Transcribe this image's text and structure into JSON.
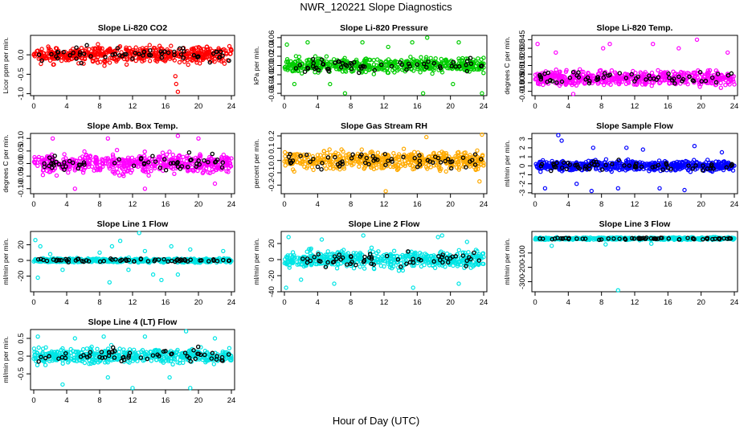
{
  "page": {
    "title": "NWR_120221  Slope Diagnostics",
    "xlabel": "Hour of Day (UTC)"
  },
  "chart_data": [
    {
      "type": "scatter",
      "title": "Slope Li-820 CO2",
      "ylabel": "Licor ppm per min.",
      "color": "#ff0000",
      "xlim": [
        0,
        24
      ],
      "ylim": [
        -1.05,
        0.5
      ],
      "xticks": [
        0,
        4,
        8,
        12,
        16,
        20,
        24
      ],
      "yticks": [
        -1.0,
        -0.5,
        0.0
      ],
      "ytick_labels": [
        "-1.0",
        "-0.5",
        "0.0"
      ],
      "spread": 0.2,
      "outliers": [
        [
          17.2,
          -0.55
        ],
        [
          17.3,
          -0.75
        ],
        [
          17.5,
          -0.95
        ]
      ]
    },
    {
      "type": "scatter",
      "title": "Slope Li-820 Pressure",
      "ylabel": "kPa per min.",
      "color": "#00cc00",
      "xlim": [
        0,
        24
      ],
      "ylim": [
        -0.065,
        0.065
      ],
      "xticks": [
        0,
        4,
        8,
        12,
        16,
        20,
        24
      ],
      "yticks": [
        -0.06,
        -0.04,
        -0.02,
        0.0,
        0.02,
        0.04,
        0.06
      ],
      "ytick_labels": [
        "-0.06",
        "-0.04",
        "-0.02",
        "0.00",
        "0.02",
        "0.04",
        "0.06"
      ],
      "spread": 0.015,
      "outliers": [
        [
          0.3,
          0.045
        ],
        [
          1.2,
          -0.04
        ],
        [
          2.8,
          0.05
        ],
        [
          5.5,
          -0.04
        ],
        [
          7.3,
          -0.06
        ],
        [
          9.4,
          0.05
        ],
        [
          12.5,
          0.04
        ],
        [
          15.4,
          0.05
        ],
        [
          16.7,
          -0.06
        ],
        [
          17.2,
          0.06
        ],
        [
          20.3,
          -0.04
        ],
        [
          21.0,
          0.05
        ],
        [
          23.8,
          -0.06
        ]
      ]
    },
    {
      "type": "scatter",
      "title": "Slope Li-820 Temp.",
      "ylabel": "degrees C per min.",
      "color": "#ff00ff",
      "xlim": [
        0,
        24
      ],
      "ylim": [
        -0.02,
        0.05
      ],
      "xticks": [
        0,
        4,
        8,
        12,
        16,
        20,
        24
      ],
      "yticks": [
        -0.015,
        -0.005,
        0.005,
        0.015,
        0.025,
        0.035,
        0.045
      ],
      "ytick_labels": [
        "-0.015",
        "-0.005",
        "0.005",
        "0.015",
        "0.025",
        "0.035",
        "0.045"
      ],
      "spread": 0.008,
      "outliers": [
        [
          0.3,
          0.04
        ],
        [
          2.5,
          0.03
        ],
        [
          4.6,
          -0.018
        ],
        [
          8.2,
          0.035
        ],
        [
          9.0,
          0.04
        ],
        [
          14.2,
          0.04
        ],
        [
          17.3,
          0.035
        ],
        [
          19.5,
          0.045
        ],
        [
          23.2,
          0.03
        ]
      ]
    },
    {
      "type": "scatter",
      "title": "Slope Amb. Box Temp.",
      "ylabel": "degrees C per min.",
      "color": "#ff00ff",
      "xlim": [
        0,
        24
      ],
      "ylim": [
        -0.12,
        0.12
      ],
      "xticks": [
        0,
        4,
        8,
        12,
        16,
        20,
        24
      ],
      "yticks": [
        -0.1,
        -0.05,
        0.0,
        0.05,
        0.1
      ],
      "ytick_labels": [
        "-0.10",
        "-0.05",
        "0.00",
        "0.05",
        "0.10"
      ],
      "spread": 0.035,
      "outliers": [
        [
          2.3,
          0.1
        ],
        [
          5.0,
          -0.1
        ],
        [
          9.0,
          0.1
        ],
        [
          13.5,
          -0.1
        ],
        [
          17.5,
          0.11
        ],
        [
          20.0,
          0.1
        ],
        [
          22.0,
          -0.08
        ]
      ]
    },
    {
      "type": "scatter",
      "title": "Slope Gas Stream RH",
      "ylabel": "percent per min.",
      "color": "#ffaa00",
      "xlim": [
        0,
        24
      ],
      "ylim": [
        -0.27,
        0.22
      ],
      "xticks": [
        0,
        4,
        8,
        12,
        16,
        20,
        24
      ],
      "yticks": [
        -0.2,
        -0.1,
        0.0,
        0.1,
        0.2
      ],
      "ytick_labels": [
        "-0.2",
        "-0.1",
        "0.0",
        "0.1",
        "0.2"
      ],
      "spread": 0.07,
      "outliers": [
        [
          12.2,
          -0.25
        ],
        [
          17.1,
          0.19
        ],
        [
          23.8,
          0.21
        ],
        [
          23.5,
          -0.17
        ]
      ]
    },
    {
      "type": "scatter",
      "title": "Slope Sample Flow",
      "ylabel": "ml/min per min.",
      "color": "#0000ff",
      "xlim": [
        0,
        24
      ],
      "ylim": [
        -3.1,
        3.6
      ],
      "xticks": [
        0,
        4,
        8,
        12,
        16,
        20,
        24
      ],
      "yticks": [
        -3,
        -2,
        -1,
        0,
        1,
        2,
        3
      ],
      "ytick_labels": [
        "-3",
        "-2",
        "-1",
        "0",
        "1",
        "2",
        "3"
      ],
      "spread": 0.55,
      "outliers": [
        [
          1.2,
          -2.5
        ],
        [
          2.8,
          3.4
        ],
        [
          3.2,
          2.8
        ],
        [
          5.0,
          -2.0
        ],
        [
          6.8,
          -2.8
        ],
        [
          7.0,
          2.0
        ],
        [
          10.0,
          -2.5
        ],
        [
          11.0,
          2.0
        ],
        [
          13.0,
          1.8
        ],
        [
          15.0,
          -2.5
        ],
        [
          18.0,
          -2.7
        ],
        [
          19.2,
          2.2
        ],
        [
          22.5,
          1.5
        ]
      ]
    },
    {
      "type": "scatter",
      "title": "Slope Line 1 Flow",
      "ylabel": "ml/min per min.",
      "color": "#00e5e5",
      "xlim": [
        0,
        24
      ],
      "ylim": [
        -40,
        37
      ],
      "xticks": [
        0,
        4,
        8,
        12,
        16,
        20,
        24
      ],
      "yticks": [
        -20,
        0,
        20
      ],
      "ytick_labels": [
        "-20",
        "0",
        "20"
      ],
      "spread": 2.5,
      "outliers": [
        [
          0.2,
          26
        ],
        [
          0.5,
          -22
        ],
        [
          0.8,
          18
        ],
        [
          2.0,
          8
        ],
        [
          3.5,
          -12
        ],
        [
          8.0,
          10
        ],
        [
          9.2,
          -28
        ],
        [
          9.5,
          18
        ],
        [
          10.5,
          25
        ],
        [
          11.5,
          -12
        ],
        [
          12.8,
          35
        ],
        [
          13.5,
          12
        ],
        [
          14.5,
          -18
        ],
        [
          15.5,
          -25
        ],
        [
          16.7,
          18
        ],
        [
          17.5,
          -18
        ],
        [
          19.0,
          14
        ],
        [
          23.0,
          12
        ]
      ]
    },
    {
      "type": "scatter",
      "title": "Slope Line 2 Flow",
      "ylabel": "ml/min per min.",
      "color": "#00e5e5",
      "xlim": [
        0,
        24
      ],
      "ylim": [
        -40,
        35
      ],
      "xticks": [
        0,
        4,
        8,
        12,
        16,
        20,
        24
      ],
      "yticks": [
        -40,
        -20,
        0,
        20
      ],
      "ytick_labels": [
        "-40",
        "-20",
        "0",
        "20"
      ],
      "spread": 10,
      "outliers": [
        [
          0.2,
          -35
        ],
        [
          0.5,
          28
        ],
        [
          2.0,
          -25
        ],
        [
          4.5,
          25
        ],
        [
          6.0,
          -30
        ],
        [
          9.5,
          30
        ],
        [
          15.5,
          -35
        ],
        [
          18.5,
          28
        ],
        [
          19.0,
          30
        ],
        [
          21.0,
          -30
        ],
        [
          22.0,
          22
        ]
      ]
    },
    {
      "type": "scatter",
      "title": "Slope Line 3 Flow",
      "ylabel": "ml/min per min.",
      "color": "#00e5e5",
      "xlim": [
        0,
        24
      ],
      "ylim": [
        -370,
        50
      ],
      "xticks": [
        0,
        4,
        8,
        12,
        16,
        20,
        24
      ],
      "yticks": [
        -300,
        -200,
        -100
      ],
      "ytick_labels": [
        "-300",
        "-200",
        "-100"
      ],
      "spread": 8,
      "outliers": [
        [
          10.0,
          -360
        ],
        [
          8.5,
          -40
        ],
        [
          2.0,
          -50
        ],
        [
          14.0,
          -35
        ]
      ]
    },
    {
      "type": "scatter",
      "title": "Slope Line 4 (LT) Flow",
      "ylabel": "ml/min per min.",
      "color": "#00e5e5",
      "xlim": [
        0,
        24
      ],
      "ylim": [
        -0.95,
        0.75
      ],
      "xticks": [
        0,
        4,
        8,
        12,
        16,
        20,
        24
      ],
      "yticks": [
        -0.5,
        0.0,
        0.5
      ],
      "ytick_labels": [
        "-0.5",
        "0.0",
        "0.5"
      ],
      "spread": 0.2,
      "outliers": [
        [
          0.5,
          0.55
        ],
        [
          3.5,
          -0.8
        ],
        [
          5.0,
          0.5
        ],
        [
          8.5,
          0.55
        ],
        [
          9.0,
          -0.6
        ],
        [
          12.0,
          -0.9
        ],
        [
          13.5,
          0.55
        ],
        [
          16.5,
          -0.6
        ],
        [
          18.5,
          0.7
        ],
        [
          19.0,
          -0.9
        ],
        [
          22.0,
          0.5
        ]
      ]
    }
  ]
}
